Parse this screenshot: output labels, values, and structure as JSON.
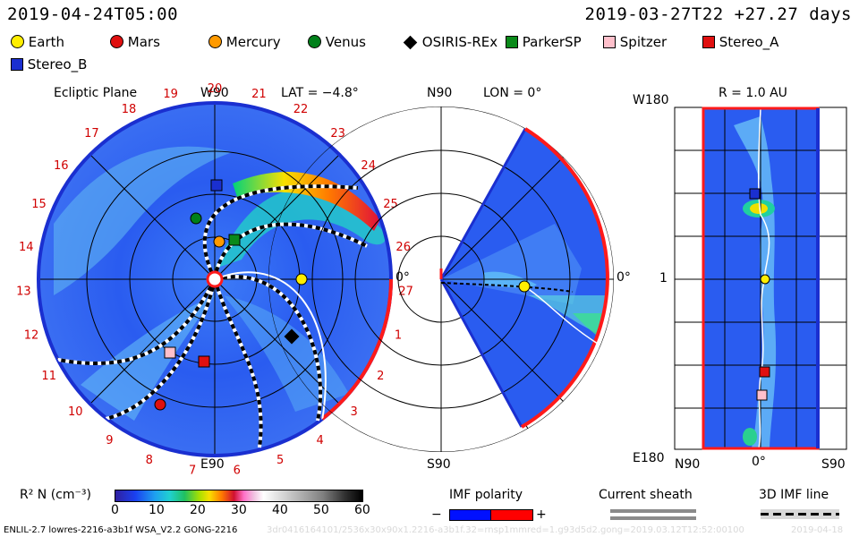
{
  "header": {
    "left_date": "2019-04-24T05:00",
    "right_date": "2019-03-27T22 +27.27 days"
  },
  "legend": [
    {
      "label": "Earth",
      "color": "#ffee00",
      "shape": "circle"
    },
    {
      "label": "Mars",
      "color": "#e01010",
      "shape": "circle"
    },
    {
      "label": "Mercury",
      "color": "#ff9a00",
      "shape": "circle"
    },
    {
      "label": "Venus",
      "color": "#00801a",
      "shape": "circle"
    },
    {
      "label": "OSIRIS-REx",
      "color": "#000000",
      "shape": "diamond"
    },
    {
      "label": "ParkerSP",
      "color": "#0a8a1a",
      "shape": "square"
    },
    {
      "label": "Spitzer",
      "color": "#ffc0cb",
      "shape": "square"
    },
    {
      "label": "Stereo_A",
      "color": "#e01010",
      "shape": "square"
    },
    {
      "label": "Stereo_B",
      "color": "#1a2fd0",
      "shape": "square"
    }
  ],
  "ecliptic": {
    "title": "Ecliptic Plane",
    "w90": "W90",
    "lat": "LAT = −4.8°",
    "e90": "E90",
    "zero": "0°",
    "day_labels": [
      "20",
      "21",
      "22",
      "23",
      "24",
      "25",
      "26",
      "27",
      "1",
      "2",
      "3",
      "4",
      "5",
      "6",
      "7",
      "8",
      "9",
      "10",
      "11",
      "12",
      "13",
      "14",
      "15",
      "16",
      "17",
      "18",
      "19"
    ]
  },
  "meridional": {
    "n90": "N90",
    "lon": "LON = 0°",
    "s90": "S90",
    "zero": "0°"
  },
  "cylindrical": {
    "w180": "W180",
    "r": "R = 1.0 AU",
    "e180": "E180",
    "one": "1",
    "n90": "N90",
    "zero": "0°",
    "s90": "S90"
  },
  "colorbar": {
    "label": "R² N (cm⁻³)",
    "ticks": [
      "0",
      "10",
      "20",
      "30",
      "40",
      "50",
      "60"
    ]
  },
  "imf": {
    "title": "IMF polarity",
    "minus": "−",
    "plus": "+",
    "minus_color": "#0010ff",
    "plus_color": "#ff0000"
  },
  "sheath": {
    "title": "Current sheath"
  },
  "imf3d": {
    "title": "3D IMF line"
  },
  "footer": {
    "left": "ENLIL-2.7 lowres-2216-a3b1f WSA_V2.2 GONG-2216",
    "mid": "3dr0416164101/2536x30x90x1.2216-a3b1f.32=rnsp1mmred=1.g93d5d2.gong=2019.03.12T12:52:00100",
    "right": "2019-04-18"
  },
  "colors": {
    "bg_blue": "#2a5cf0",
    "boundary_blue": "#1a2fd0",
    "boundary_red": "#ff1a1a"
  }
}
